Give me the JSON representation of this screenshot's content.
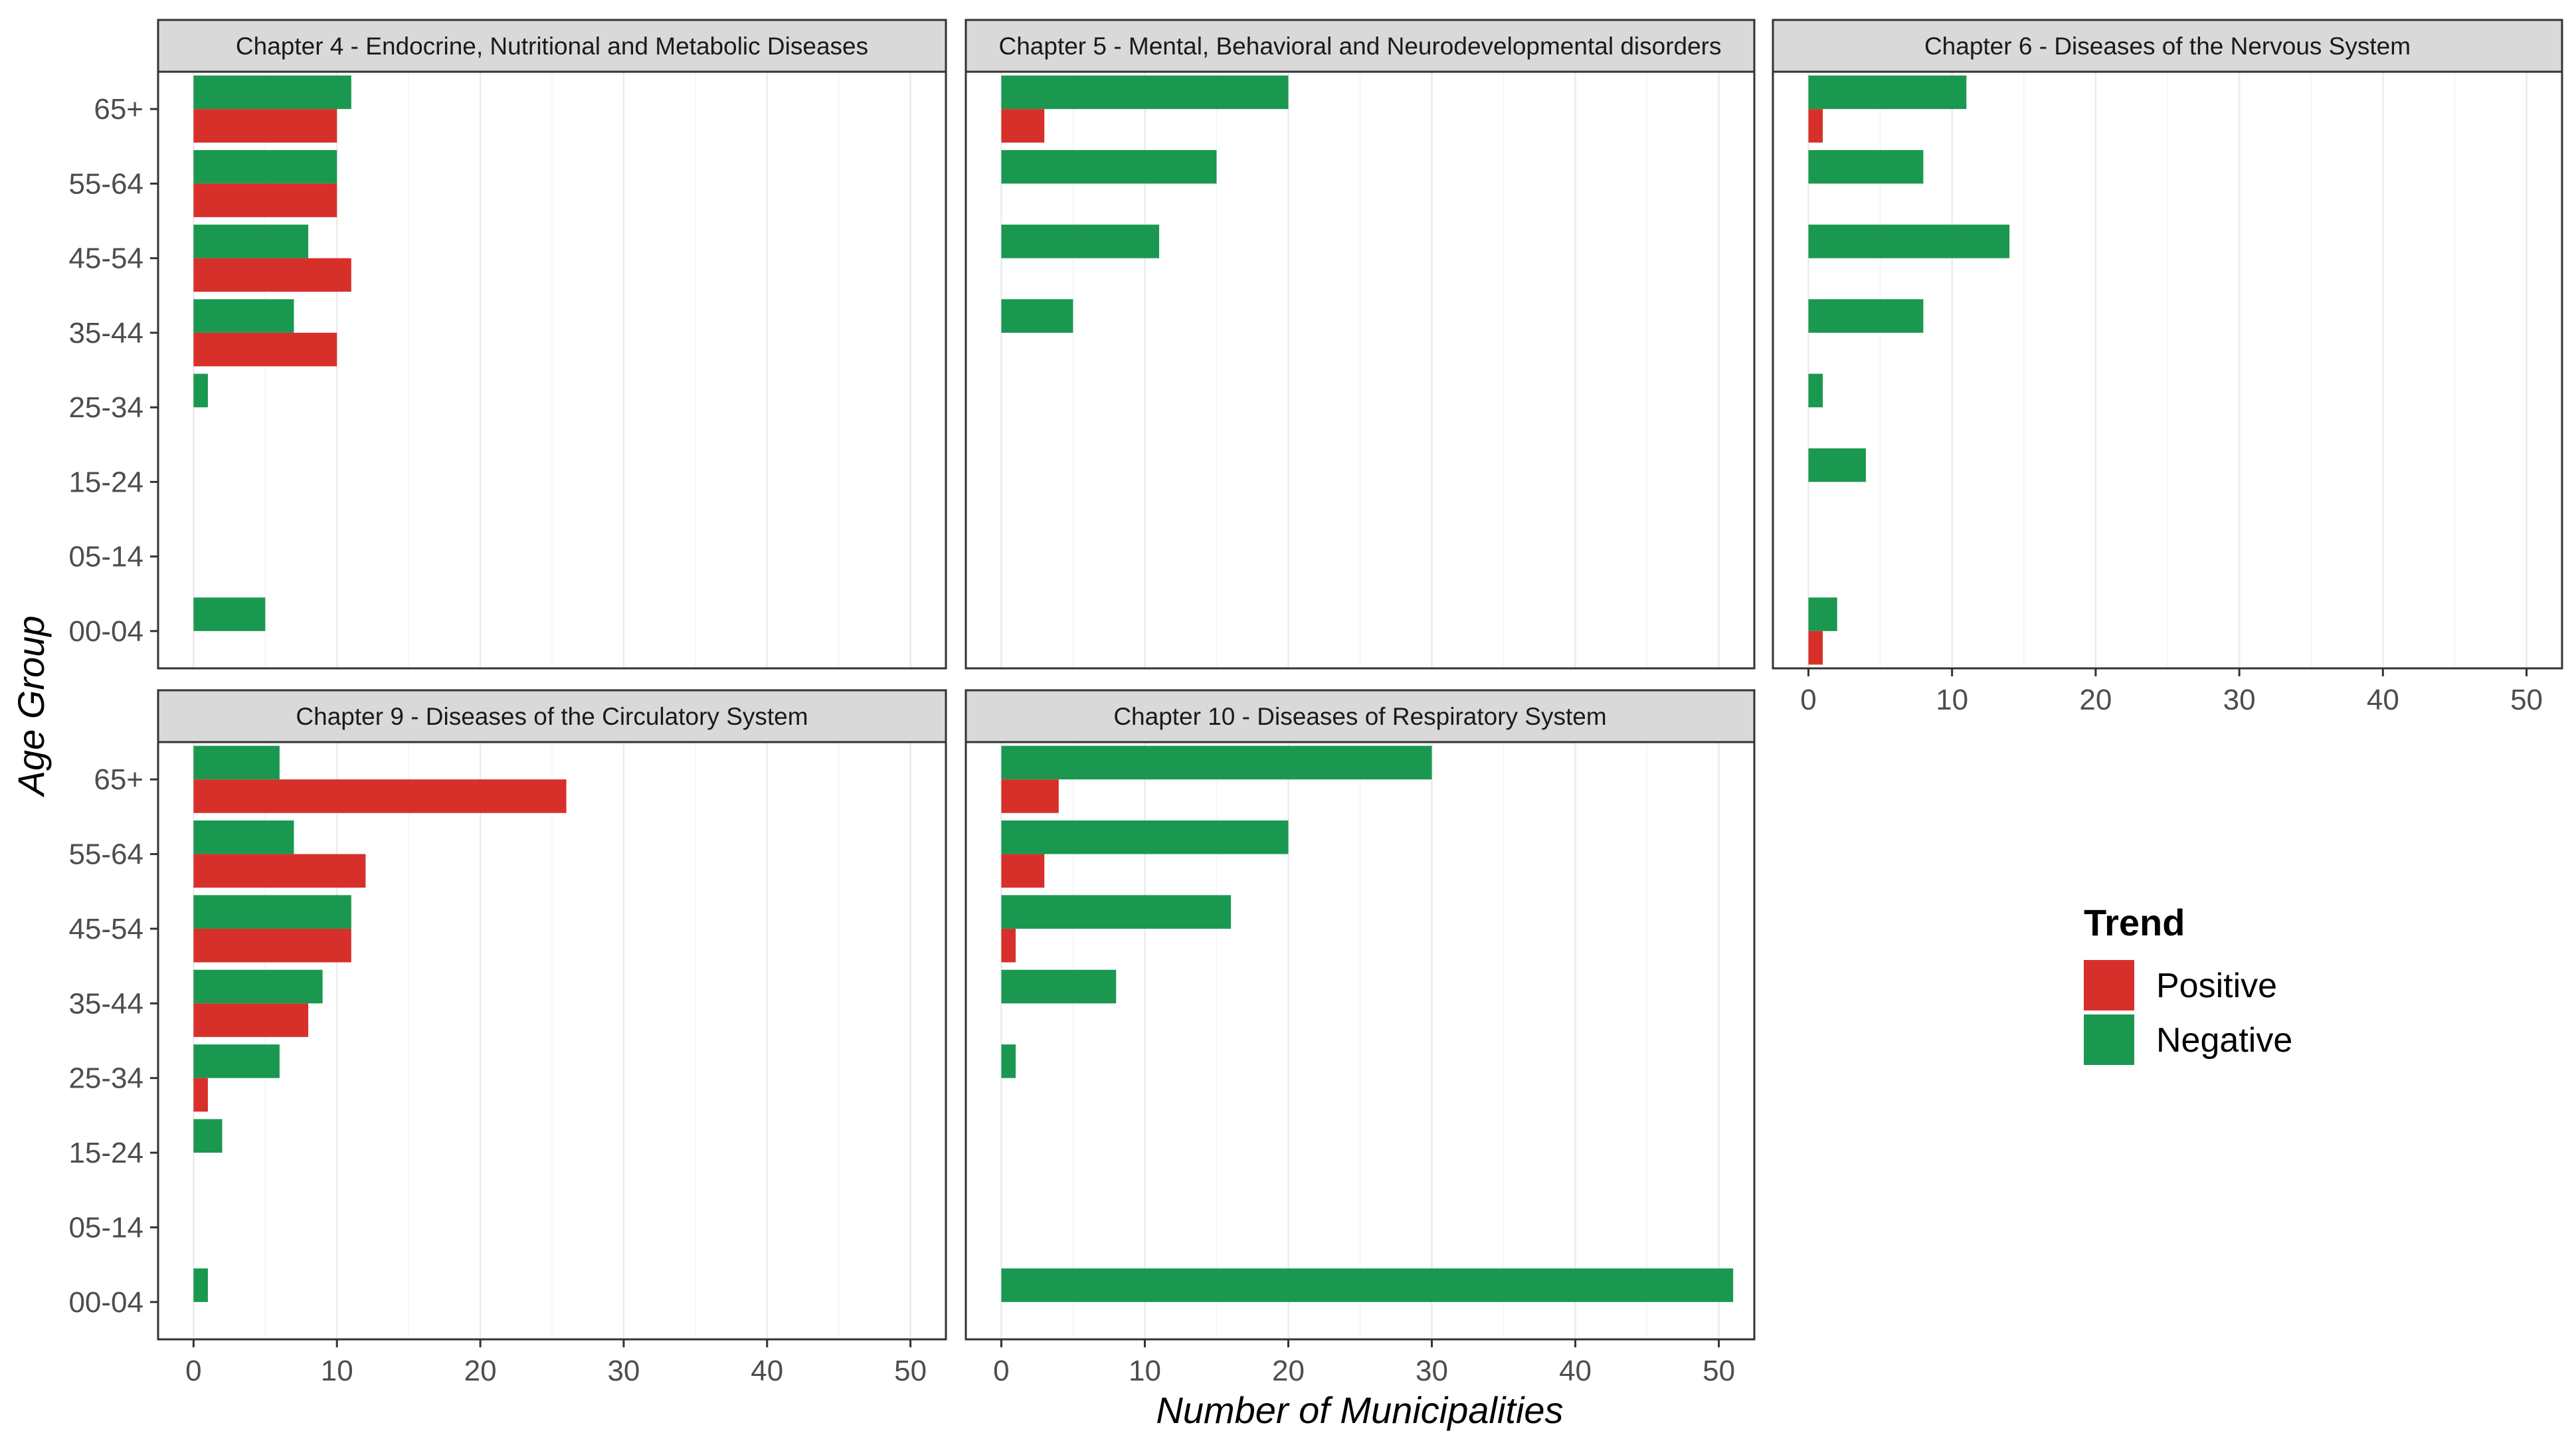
{
  "chart_data": {
    "type": "bar",
    "orientation": "horizontal",
    "xlabel": "Number of Municipalities",
    "ylabel": "Age Group",
    "xlim": [
      0,
      50
    ],
    "xticks": [
      0,
      10,
      20,
      30,
      40,
      50
    ],
    "categories": [
      "65+",
      "55-64",
      "45-54",
      "35-44",
      "25-34",
      "15-24",
      "05-14",
      "00-04"
    ],
    "legend": {
      "title": "Trend",
      "entries": [
        {
          "name": "Positive",
          "color": "#D7302A"
        },
        {
          "name": "Negative",
          "color": "#1A9850"
        }
      ],
      "position": "right"
    },
    "facets": [
      {
        "title": "Chapter 4 - Endocrine, Nutritional and Metabolic Diseases",
        "series": [
          {
            "name": "Positive",
            "values": [
              10,
              10,
              11,
              10,
              0,
              0,
              0,
              0
            ]
          },
          {
            "name": "Negative",
            "values": [
              11,
              10,
              8,
              7,
              1,
              0,
              0,
              5
            ]
          }
        ]
      },
      {
        "title": "Chapter 5 - Mental, Behavioral and Neurodevelopmental disorders",
        "series": [
          {
            "name": "Positive",
            "values": [
              3,
              0,
              0,
              0,
              0,
              0,
              0,
              0
            ]
          },
          {
            "name": "Negative",
            "values": [
              20,
              15,
              11,
              5,
              0,
              0,
              0,
              0
            ]
          }
        ]
      },
      {
        "title": "Chapter 6 - Diseases of the Nervous System",
        "series": [
          {
            "name": "Positive",
            "values": [
              1,
              0,
              0,
              0,
              0,
              0,
              0,
              1
            ]
          },
          {
            "name": "Negative",
            "values": [
              11,
              8,
              14,
              8,
              1,
              4,
              0,
              2
            ]
          }
        ]
      },
      {
        "title": "Chapter 9 - Diseases of the Circulatory System",
        "series": [
          {
            "name": "Positive",
            "values": [
              26,
              12,
              11,
              8,
              1,
              0,
              0,
              0
            ]
          },
          {
            "name": "Negative",
            "values": [
              6,
              7,
              11,
              9,
              6,
              2,
              0,
              1
            ]
          }
        ]
      },
      {
        "title": "Chapter 10 - Diseases of Respiratory System",
        "series": [
          {
            "name": "Positive",
            "values": [
              4,
              3,
              1,
              0,
              0,
              0,
              0,
              0
            ]
          },
          {
            "name": "Negative",
            "values": [
              30,
              20,
              16,
              8,
              1,
              0,
              0,
              51
            ]
          }
        ]
      }
    ]
  }
}
